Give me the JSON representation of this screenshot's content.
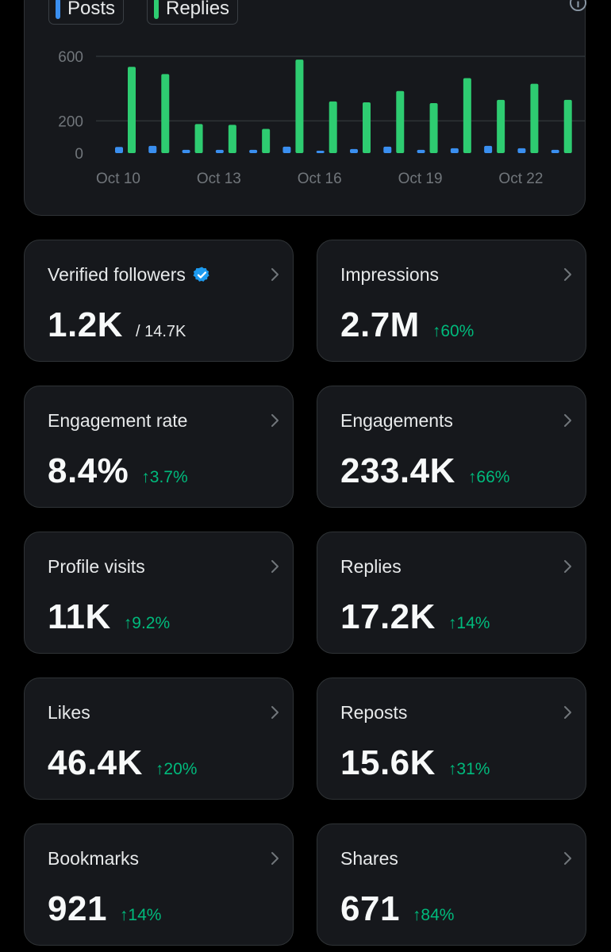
{
  "legend": {
    "posts_label": "Posts",
    "replies_label": "Replies"
  },
  "colors": {
    "posts": "#3a8ff0",
    "replies": "#2ecc71",
    "positive_change": "#00ba7c",
    "verified_badge": "#1d9bf0"
  },
  "icons": {
    "info": "info-icon",
    "verified": "verified-badge-icon",
    "chevron": "chevron-right-icon"
  },
  "chart_data": {
    "type": "bar",
    "categories": [
      "Oct 10",
      "Oct 11",
      "Oct 12",
      "Oct 13",
      "Oct 14",
      "Oct 15",
      "Oct 16",
      "Oct 17",
      "Oct 18",
      "Oct 19",
      "Oct 20",
      "Oct 21",
      "Oct 22",
      "Oct 23"
    ],
    "tick_labels": [
      "Oct 10",
      "Oct 13",
      "Oct 16",
      "Oct 19",
      "Oct 22"
    ],
    "y_ticks": [
      0,
      200,
      600
    ],
    "ylim": [
      0,
      600
    ],
    "series": [
      {
        "name": "Posts",
        "values": [
          38,
          45,
          20,
          20,
          20,
          40,
          15,
          25,
          40,
          20,
          30,
          45,
          30,
          20
        ]
      },
      {
        "name": "Replies",
        "values": [
          535,
          490,
          180,
          175,
          150,
          580,
          320,
          315,
          385,
          310,
          465,
          330,
          430,
          330
        ]
      }
    ],
    "grid": true,
    "legend_position": "top-left"
  },
  "stats": [
    {
      "label": "Verified followers",
      "value": "1.2K",
      "sub": "/ 14.7K",
      "change": "",
      "verified": true
    },
    {
      "label": "Impressions",
      "value": "2.7M",
      "sub": "",
      "change": "60%"
    },
    {
      "label": "Engagement rate",
      "value": "8.4%",
      "sub": "",
      "change": "3.7%"
    },
    {
      "label": "Engagements",
      "value": "233.4K",
      "sub": "",
      "change": "66%"
    },
    {
      "label": "Profile visits",
      "value": "11K",
      "sub": "",
      "change": "9.2%"
    },
    {
      "label": "Replies",
      "value": "17.2K",
      "sub": "",
      "change": "14%"
    },
    {
      "label": "Likes",
      "value": "46.4K",
      "sub": "",
      "change": "20%"
    },
    {
      "label": "Reposts",
      "value": "15.6K",
      "sub": "",
      "change": "31%"
    },
    {
      "label": "Bookmarks",
      "value": "921",
      "sub": "",
      "change": "14%"
    },
    {
      "label": "Shares",
      "value": "671",
      "sub": "",
      "change": "84%"
    }
  ]
}
